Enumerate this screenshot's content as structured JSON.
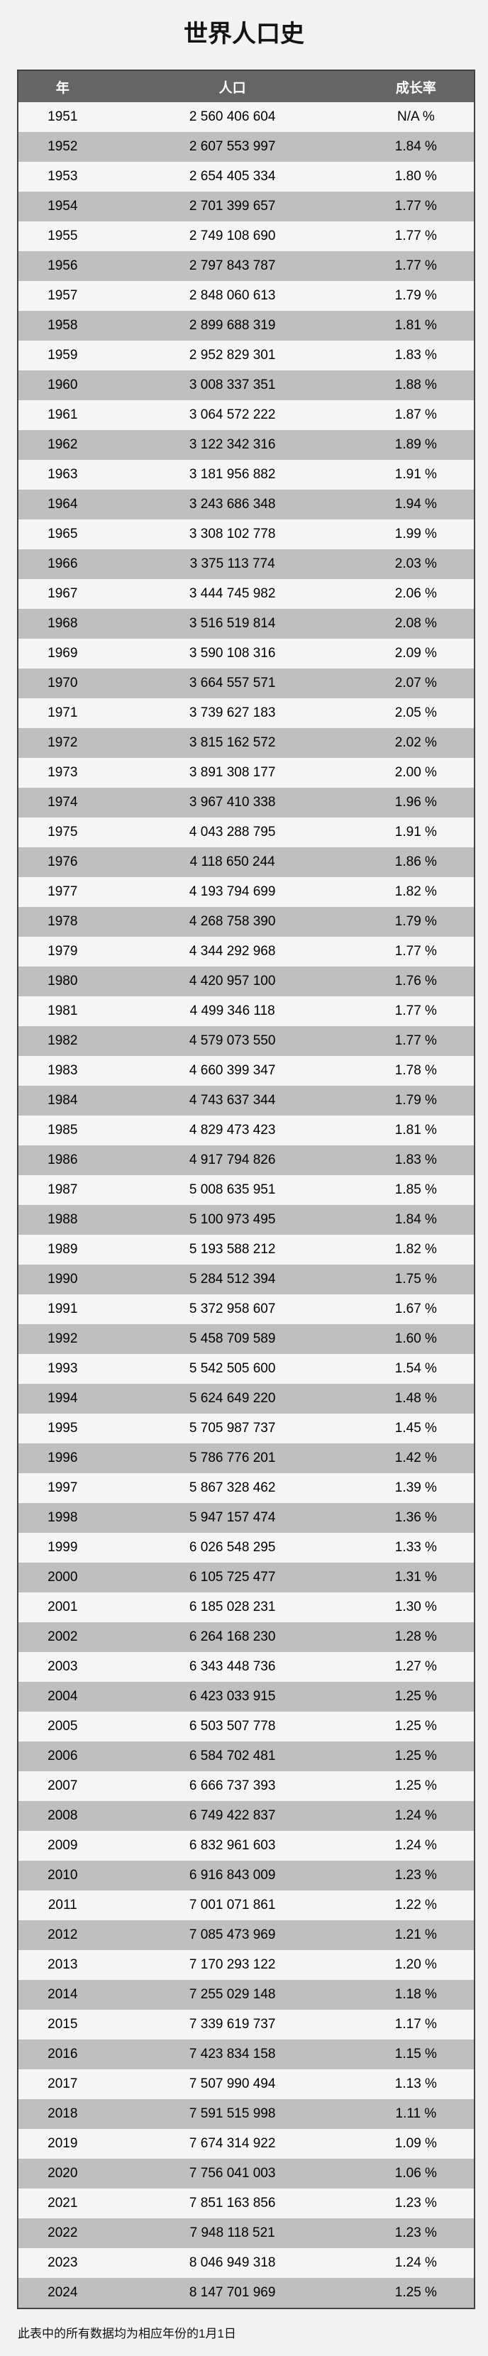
{
  "page": {
    "title": "世界人口史",
    "footnote": "此表中的所有数据均为相应年份的1月1日",
    "background_color": "#f2f2f2"
  },
  "colors": {
    "header_bg": "#656565",
    "header_text": "#ffffff",
    "row_light_bg": "#f5f5f5",
    "row_dark_bg": "#bfbfbf",
    "table_border": "#424242",
    "cell_text": "#000000"
  },
  "table": {
    "columns": [
      "年",
      "人口",
      "成长率"
    ],
    "rows": [
      [
        "1951",
        "2 560 406 604",
        "N/A %"
      ],
      [
        "1952",
        "2 607 553 997",
        "1.84 %"
      ],
      [
        "1953",
        "2 654 405 334",
        "1.80 %"
      ],
      [
        "1954",
        "2 701 399 657",
        "1.77 %"
      ],
      [
        "1955",
        "2 749 108 690",
        "1.77 %"
      ],
      [
        "1956",
        "2 797 843 787",
        "1.77 %"
      ],
      [
        "1957",
        "2 848 060 613",
        "1.79 %"
      ],
      [
        "1958",
        "2 899 688 319",
        "1.81 %"
      ],
      [
        "1959",
        "2 952 829 301",
        "1.83 %"
      ],
      [
        "1960",
        "3 008 337 351",
        "1.88 %"
      ],
      [
        "1961",
        "3 064 572 222",
        "1.87 %"
      ],
      [
        "1962",
        "3 122 342 316",
        "1.89 %"
      ],
      [
        "1963",
        "3 181 956 882",
        "1.91 %"
      ],
      [
        "1964",
        "3 243 686 348",
        "1.94 %"
      ],
      [
        "1965",
        "3 308 102 778",
        "1.99 %"
      ],
      [
        "1966",
        "3 375 113 774",
        "2.03 %"
      ],
      [
        "1967",
        "3 444 745 982",
        "2.06 %"
      ],
      [
        "1968",
        "3 516 519 814",
        "2.08 %"
      ],
      [
        "1969",
        "3 590 108 316",
        "2.09 %"
      ],
      [
        "1970",
        "3 664 557 571",
        "2.07 %"
      ],
      [
        "1971",
        "3 739 627 183",
        "2.05 %"
      ],
      [
        "1972",
        "3 815 162 572",
        "2.02 %"
      ],
      [
        "1973",
        "3 891 308 177",
        "2.00 %"
      ],
      [
        "1974",
        "3 967 410 338",
        "1.96 %"
      ],
      [
        "1975",
        "4 043 288 795",
        "1.91 %"
      ],
      [
        "1976",
        "4 118 650 244",
        "1.86 %"
      ],
      [
        "1977",
        "4 193 794 699",
        "1.82 %"
      ],
      [
        "1978",
        "4 268 758 390",
        "1.79 %"
      ],
      [
        "1979",
        "4 344 292 968",
        "1.77 %"
      ],
      [
        "1980",
        "4 420 957 100",
        "1.76 %"
      ],
      [
        "1981",
        "4 499 346 118",
        "1.77 %"
      ],
      [
        "1982",
        "4 579 073 550",
        "1.77 %"
      ],
      [
        "1983",
        "4 660 399 347",
        "1.78 %"
      ],
      [
        "1984",
        "4 743 637 344",
        "1.79 %"
      ],
      [
        "1985",
        "4 829 473 423",
        "1.81 %"
      ],
      [
        "1986",
        "4 917 794 826",
        "1.83 %"
      ],
      [
        "1987",
        "5 008 635 951",
        "1.85 %"
      ],
      [
        "1988",
        "5 100 973 495",
        "1.84 %"
      ],
      [
        "1989",
        "5 193 588 212",
        "1.82 %"
      ],
      [
        "1990",
        "5 284 512 394",
        "1.75 %"
      ],
      [
        "1991",
        "5 372 958 607",
        "1.67 %"
      ],
      [
        "1992",
        "5 458 709 589",
        "1.60 %"
      ],
      [
        "1993",
        "5 542 505 600",
        "1.54 %"
      ],
      [
        "1994",
        "5 624 649 220",
        "1.48 %"
      ],
      [
        "1995",
        "5 705 987 737",
        "1.45 %"
      ],
      [
        "1996",
        "5 786 776 201",
        "1.42 %"
      ],
      [
        "1997",
        "5 867 328 462",
        "1.39 %"
      ],
      [
        "1998",
        "5 947 157 474",
        "1.36 %"
      ],
      [
        "1999",
        "6 026 548 295",
        "1.33 %"
      ],
      [
        "2000",
        "6 105 725 477",
        "1.31 %"
      ],
      [
        "2001",
        "6 185 028 231",
        "1.30 %"
      ],
      [
        "2002",
        "6 264 168 230",
        "1.28 %"
      ],
      [
        "2003",
        "6 343 448 736",
        "1.27 %"
      ],
      [
        "2004",
        "6 423 033 915",
        "1.25 %"
      ],
      [
        "2005",
        "6 503 507 778",
        "1.25 %"
      ],
      [
        "2006",
        "6 584 702 481",
        "1.25 %"
      ],
      [
        "2007",
        "6 666 737 393",
        "1.25 %"
      ],
      [
        "2008",
        "6 749 422 837",
        "1.24 %"
      ],
      [
        "2009",
        "6 832 961 603",
        "1.24 %"
      ],
      [
        "2010",
        "6 916 843 009",
        "1.23 %"
      ],
      [
        "2011",
        "7 001 071 861",
        "1.22 %"
      ],
      [
        "2012",
        "7 085 473 969",
        "1.21 %"
      ],
      [
        "2013",
        "7 170 293 122",
        "1.20 %"
      ],
      [
        "2014",
        "7 255 029 148",
        "1.18 %"
      ],
      [
        "2015",
        "7 339 619 737",
        "1.17 %"
      ],
      [
        "2016",
        "7 423 834 158",
        "1.15 %"
      ],
      [
        "2017",
        "7 507 990 494",
        "1.13 %"
      ],
      [
        "2018",
        "7 591 515 998",
        "1.11 %"
      ],
      [
        "2019",
        "7 674 314 922",
        "1.09 %"
      ],
      [
        "2020",
        "7 756 041 003",
        "1.06 %"
      ],
      [
        "2021",
        "7 851 163 856",
        "1.23 %"
      ],
      [
        "2022",
        "7 948 118 521",
        "1.23 %"
      ],
      [
        "2023",
        "8 046 949 318",
        "1.24 %"
      ],
      [
        "2024",
        "8 147 701 969",
        "1.25 %"
      ]
    ]
  }
}
